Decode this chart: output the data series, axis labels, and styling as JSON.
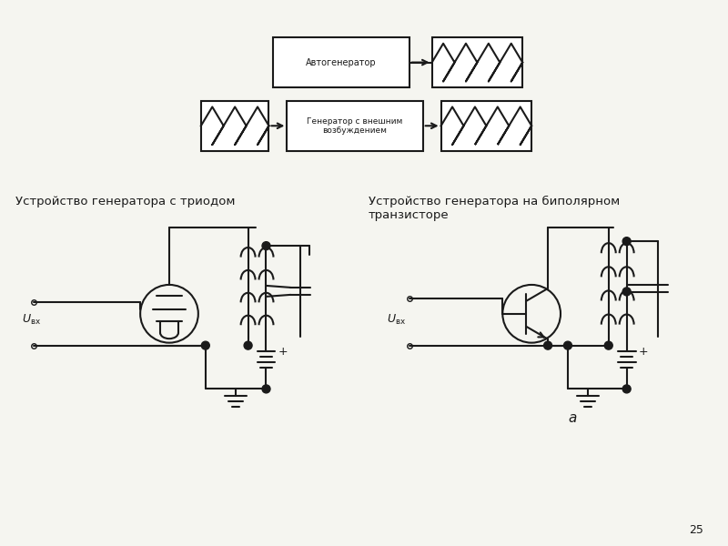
{
  "bg_color": "#f5f5f0",
  "line_color": "#1a1a1a",
  "title1": "Устройство генератора с триодом",
  "title2": "Устройство генератора на биполярном\nтранзисторе",
  "label_autogen": "Автогенератор",
  "label_extern": "Генератор с внешним\nвозбуждением",
  "label_uvx": "$U_{\\text{вх}}$",
  "label_a": "а",
  "page_number": "25",
  "lw": 1.5
}
